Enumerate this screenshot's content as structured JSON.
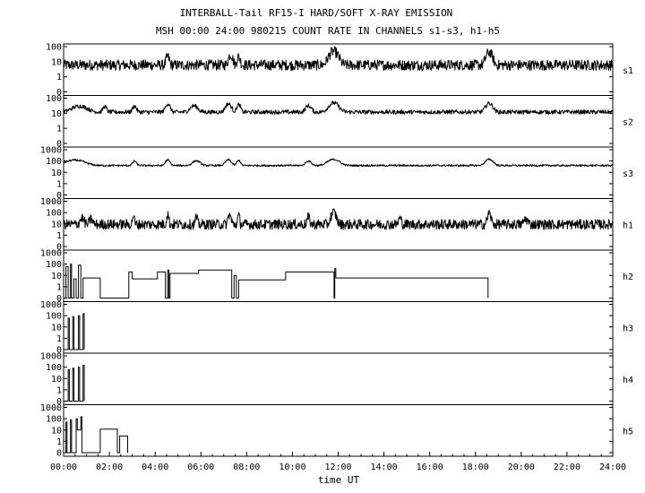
{
  "chart_data": {
    "type": "line",
    "title": "INTERBALL-Tail RF15-I HARD/SOFT X-RAY EMISSION",
    "subtitle": "MSH 00:00 24:00 980215  COUNT RATE IN CHANNELS s1-s3, h1-h5",
    "xlabel": "time UT",
    "x_ticks": [
      "00:00",
      "02:00",
      "04:00",
      "06:00",
      "08:00",
      "10:00",
      "12:00",
      "14:00",
      "16:00",
      "18:00",
      "20:00",
      "22:00",
      "24:00"
    ],
    "xlim_hours": [
      0,
      24
    ],
    "y_scale": "log",
    "grid": false,
    "panels": [
      {
        "channel": "s1",
        "y_ticks": [
          "100",
          "10",
          "1",
          "0"
        ],
        "baseline": 6,
        "noise": 0.35,
        "peaks": [
          [
            4.55,
            2.5,
            0.08
          ],
          [
            7.3,
            4,
            0.1
          ],
          [
            7.65,
            2.5,
            0.08
          ],
          [
            11.8,
            7,
            0.22
          ],
          [
            18.6,
            6,
            0.15
          ]
        ]
      },
      {
        "channel": "s2",
        "y_ticks": [
          "100",
          "10",
          "1",
          "0"
        ],
        "baseline": 12,
        "noise": 0.14,
        "peaks": [
          [
            0.7,
            1.5,
            0.4
          ],
          [
            1.8,
            1.3,
            0.1
          ],
          [
            3.1,
            1.5,
            0.1
          ],
          [
            4.55,
            2.5,
            0.12
          ],
          [
            5.7,
            1.6,
            0.2
          ],
          [
            7.2,
            2.5,
            0.15
          ],
          [
            7.65,
            2.1,
            0.1
          ],
          [
            10.7,
            1.6,
            0.15
          ],
          [
            11.8,
            3,
            0.25
          ],
          [
            18.6,
            2.8,
            0.18
          ]
        ]
      },
      {
        "channel": "s3",
        "y_ticks": [
          "1000",
          "100",
          "10",
          "1",
          "0"
        ],
        "baseline": 40,
        "noise": 0.08,
        "peaks": [
          [
            0.5,
            2,
            0.5
          ],
          [
            3.1,
            1.5,
            0.1
          ],
          [
            4.55,
            2.1,
            0.12
          ],
          [
            5.8,
            1.6,
            0.2
          ],
          [
            7.2,
            2.2,
            0.15
          ],
          [
            7.65,
            1.8,
            0.1
          ],
          [
            10.7,
            1.5,
            0.15
          ],
          [
            11.8,
            2.5,
            0.3
          ],
          [
            18.6,
            2.5,
            0.2
          ]
        ]
      },
      {
        "channel": "h1",
        "y_ticks": [
          "1000",
          "100",
          "10",
          "1",
          "0"
        ],
        "baseline": 9,
        "noise": 0.45,
        "peaks": [
          [
            0.8,
            2.5,
            0.1
          ],
          [
            1.2,
            2,
            0.08
          ],
          [
            3.05,
            6,
            0.04
          ],
          [
            4.55,
            7,
            0.05
          ],
          [
            5.8,
            3,
            0.05
          ],
          [
            7.25,
            6,
            0.07
          ],
          [
            7.65,
            4,
            0.05
          ],
          [
            10.7,
            3,
            0.07
          ],
          [
            11.8,
            10,
            0.12
          ],
          [
            14.7,
            2.5,
            0.07
          ],
          [
            18.6,
            8,
            0.08
          ],
          [
            20.2,
            2,
            0.1
          ]
        ]
      },
      {
        "channel": "h2",
        "y_ticks": [
          "1000",
          "100",
          "10",
          "1",
          "0"
        ],
        "steps": [
          [
            0,
            0
          ],
          [
            0.1,
            60
          ],
          [
            0.2,
            0
          ],
          [
            0.3,
            100
          ],
          [
            0.35,
            0
          ],
          [
            0.45,
            5
          ],
          [
            0.55,
            0
          ],
          [
            0.65,
            80
          ],
          [
            0.75,
            0
          ],
          [
            0.85,
            6
          ],
          [
            1.0,
            6
          ],
          [
            1.6,
            0
          ],
          [
            2.75,
            0
          ],
          [
            2.85,
            20
          ],
          [
            3.0,
            5
          ],
          [
            4.0,
            5
          ],
          [
            4.1,
            20
          ],
          [
            4.4,
            20
          ],
          [
            4.45,
            0
          ],
          [
            4.55,
            30
          ],
          [
            4.6,
            0
          ],
          [
            4.65,
            15
          ],
          [
            5.8,
            15
          ],
          [
            5.9,
            30
          ],
          [
            7.3,
            30
          ],
          [
            7.35,
            0
          ],
          [
            7.45,
            10
          ],
          [
            7.55,
            0
          ],
          [
            7.65,
            4
          ],
          [
            9.6,
            4
          ],
          [
            9.7,
            20
          ],
          [
            11.8,
            20
          ],
          [
            11.82,
            0
          ],
          [
            11.85,
            40
          ],
          [
            11.9,
            6
          ],
          [
            18.5,
            6
          ],
          [
            18.55,
            0
          ]
        ]
      },
      {
        "channel": "h3",
        "y_ticks": [
          "1000",
          "100",
          "10",
          "1",
          "0"
        ],
        "steps": [
          [
            0,
            0
          ],
          [
            0.2,
            60
          ],
          [
            0.25,
            0
          ],
          [
            0.4,
            80
          ],
          [
            0.45,
            0
          ],
          [
            0.65,
            100
          ],
          [
            0.7,
            0
          ],
          [
            0.85,
            150
          ],
          [
            0.9,
            0
          ]
        ]
      },
      {
        "channel": "h4",
        "y_ticks": [
          "1000",
          "100",
          "10",
          "1",
          "0"
        ],
        "steps": [
          [
            0,
            0
          ],
          [
            0.2,
            60
          ],
          [
            0.25,
            0
          ],
          [
            0.4,
            80
          ],
          [
            0.45,
            0
          ],
          [
            0.65,
            100
          ],
          [
            0.7,
            0
          ],
          [
            0.85,
            150
          ],
          [
            0.9,
            0
          ]
        ]
      },
      {
        "channel": "h5",
        "y_ticks": [
          "1000",
          "100",
          "10",
          "1",
          "0"
        ],
        "steps": [
          [
            0,
            0
          ],
          [
            0.1,
            50
          ],
          [
            0.15,
            0
          ],
          [
            0.3,
            80
          ],
          [
            0.35,
            0
          ],
          [
            0.55,
            100
          ],
          [
            0.6,
            10
          ],
          [
            0.75,
            150
          ],
          [
            0.8,
            0
          ],
          [
            1.1,
            0
          ],
          [
            1.6,
            12
          ],
          [
            2.3,
            12
          ],
          [
            2.35,
            0
          ],
          [
            2.45,
            3
          ],
          [
            2.75,
            3
          ],
          [
            2.8,
            0
          ]
        ]
      }
    ]
  }
}
